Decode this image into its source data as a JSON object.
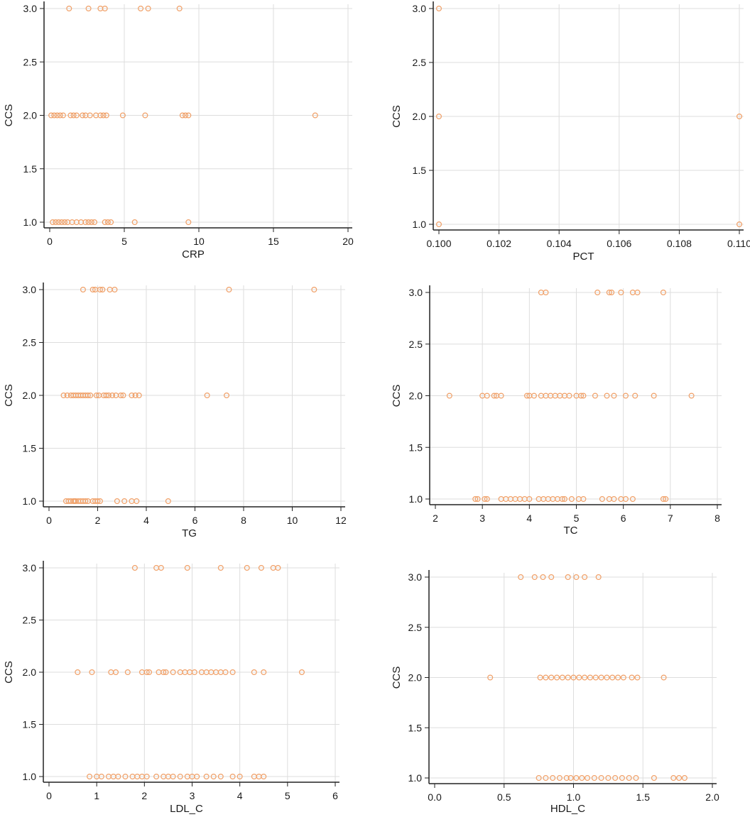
{
  "figure": {
    "marker_color": "#f0a068",
    "grid_color": "#dddddd",
    "axis_color": "#222222"
  },
  "chart_data": [
    {
      "type": "scatter",
      "xlabel": "CRP",
      "ylabel": "CCS",
      "xlim": [
        0,
        20
      ],
      "ylim": [
        1.0,
        3.0
      ],
      "xticks": [
        0,
        5,
        10,
        15,
        20
      ],
      "xtick_labels": [
        "0",
        "5",
        "10",
        "15",
        "20"
      ],
      "yticks": [
        1.0,
        1.5,
        2.0,
        2.5,
        3.0
      ],
      "ytick_labels": [
        "1.0",
        "1.5",
        "2.0",
        "2.5",
        "3.0"
      ],
      "grid": true,
      "points": [
        [
          0.2,
          1
        ],
        [
          0.4,
          1
        ],
        [
          0.6,
          1
        ],
        [
          0.8,
          1
        ],
        [
          1.0,
          1
        ],
        [
          1.2,
          1
        ],
        [
          1.5,
          1
        ],
        [
          1.8,
          1
        ],
        [
          2.1,
          1
        ],
        [
          2.4,
          1
        ],
        [
          2.6,
          1
        ],
        [
          2.8,
          1
        ],
        [
          3.0,
          1
        ],
        [
          3.7,
          1
        ],
        [
          3.9,
          1
        ],
        [
          4.1,
          1
        ],
        [
          5.7,
          1
        ],
        [
          9.3,
          1
        ],
        [
          0.1,
          2
        ],
        [
          0.3,
          2
        ],
        [
          0.5,
          2
        ],
        [
          0.7,
          2
        ],
        [
          0.9,
          2
        ],
        [
          1.4,
          2
        ],
        [
          1.6,
          2
        ],
        [
          1.8,
          2
        ],
        [
          2.2,
          2
        ],
        [
          2.4,
          2
        ],
        [
          2.7,
          2
        ],
        [
          3.1,
          2
        ],
        [
          3.4,
          2
        ],
        [
          3.6,
          2
        ],
        [
          3.8,
          2
        ],
        [
          4.9,
          2
        ],
        [
          6.4,
          2
        ],
        [
          8.9,
          2
        ],
        [
          9.1,
          2
        ],
        [
          9.3,
          2
        ],
        [
          17.8,
          2
        ],
        [
          1.3,
          3
        ],
        [
          2.6,
          3
        ],
        [
          3.4,
          3
        ],
        [
          3.7,
          3
        ],
        [
          6.1,
          3
        ],
        [
          6.6,
          3
        ],
        [
          8.7,
          3
        ]
      ]
    },
    {
      "type": "scatter",
      "xlabel": "PCT",
      "ylabel": "CCS",
      "xlim": [
        0.1,
        0.11
      ],
      "ylim": [
        1.0,
        3.0
      ],
      "xticks": [
        0.1,
        0.102,
        0.104,
        0.106,
        0.108,
        0.11
      ],
      "xtick_labels": [
        "0.100",
        "0.102",
        "0.104",
        "0.106",
        "0.108",
        "0.110"
      ],
      "yticks": [
        1.0,
        1.5,
        2.0,
        2.5,
        3.0
      ],
      "ytick_labels": [
        "1.0",
        "1.5",
        "2.0",
        "2.5",
        "3.0"
      ],
      "grid": true,
      "points": [
        [
          0.1,
          1
        ],
        [
          0.11,
          1
        ],
        [
          0.1,
          2
        ],
        [
          0.11,
          2
        ],
        [
          0.1,
          3
        ]
      ]
    },
    {
      "type": "scatter",
      "xlabel": "TG",
      "ylabel": "CCS",
      "xlim": [
        0,
        12
      ],
      "ylim": [
        1.0,
        3.0
      ],
      "xticks": [
        0,
        2,
        4,
        6,
        8,
        10,
        12
      ],
      "xtick_labels": [
        "0",
        "2",
        "4",
        "6",
        "8",
        "10",
        "12"
      ],
      "yticks": [
        1.0,
        1.5,
        2.0,
        2.5,
        3.0
      ],
      "ytick_labels": [
        "1.0",
        "1.5",
        "2.0",
        "2.5",
        "3.0"
      ],
      "grid": true,
      "points": [
        [
          0.7,
          1
        ],
        [
          0.8,
          1
        ],
        [
          0.9,
          1
        ],
        [
          1.0,
          1
        ],
        [
          1.05,
          1
        ],
        [
          1.1,
          1
        ],
        [
          1.2,
          1
        ],
        [
          1.3,
          1
        ],
        [
          1.4,
          1
        ],
        [
          1.5,
          1
        ],
        [
          1.6,
          1
        ],
        [
          1.8,
          1
        ],
        [
          1.9,
          1
        ],
        [
          2.0,
          1
        ],
        [
          2.1,
          1
        ],
        [
          2.8,
          1
        ],
        [
          3.1,
          1
        ],
        [
          3.4,
          1
        ],
        [
          3.6,
          1
        ],
        [
          4.9,
          1
        ],
        [
          0.6,
          2
        ],
        [
          0.75,
          2
        ],
        [
          0.9,
          2
        ],
        [
          1.0,
          2
        ],
        [
          1.1,
          2
        ],
        [
          1.2,
          2
        ],
        [
          1.3,
          2
        ],
        [
          1.4,
          2
        ],
        [
          1.5,
          2
        ],
        [
          1.6,
          2
        ],
        [
          1.7,
          2
        ],
        [
          1.95,
          2
        ],
        [
          2.05,
          2
        ],
        [
          2.25,
          2
        ],
        [
          2.35,
          2
        ],
        [
          2.45,
          2
        ],
        [
          2.6,
          2
        ],
        [
          2.75,
          2
        ],
        [
          2.95,
          2
        ],
        [
          3.05,
          2
        ],
        [
          3.4,
          2
        ],
        [
          3.55,
          2
        ],
        [
          3.7,
          2
        ],
        [
          6.5,
          2
        ],
        [
          7.3,
          2
        ],
        [
          1.4,
          3
        ],
        [
          1.8,
          3
        ],
        [
          1.9,
          3
        ],
        [
          2.1,
          3
        ],
        [
          2.2,
          3
        ],
        [
          2.5,
          3
        ],
        [
          2.7,
          3
        ],
        [
          7.4,
          3
        ],
        [
          10.9,
          3
        ]
      ]
    },
    {
      "type": "scatter",
      "xlabel": "TC",
      "ylabel": "CCS",
      "xlim": [
        2,
        8
      ],
      "ylim": [
        1.0,
        3.0
      ],
      "xticks": [
        2,
        3,
        4,
        5,
        6,
        7,
        8
      ],
      "xtick_labels": [
        "2",
        "3",
        "4",
        "5",
        "6",
        "7",
        "8"
      ],
      "yticks": [
        1.0,
        1.5,
        2.0,
        2.5,
        3.0
      ],
      "ytick_labels": [
        "1.0",
        "1.5",
        "2.0",
        "2.5",
        "3.0"
      ],
      "grid": true,
      "points": [
        [
          2.85,
          1
        ],
        [
          2.9,
          1
        ],
        [
          3.05,
          1
        ],
        [
          3.1,
          1
        ],
        [
          3.4,
          1
        ],
        [
          3.5,
          1
        ],
        [
          3.6,
          1
        ],
        [
          3.7,
          1
        ],
        [
          3.8,
          1
        ],
        [
          3.9,
          1
        ],
        [
          4.0,
          1
        ],
        [
          4.2,
          1
        ],
        [
          4.3,
          1
        ],
        [
          4.4,
          1
        ],
        [
          4.5,
          1
        ],
        [
          4.6,
          1
        ],
        [
          4.7,
          1
        ],
        [
          4.75,
          1
        ],
        [
          4.9,
          1
        ],
        [
          5.05,
          1
        ],
        [
          5.15,
          1
        ],
        [
          5.55,
          1
        ],
        [
          5.7,
          1
        ],
        [
          5.8,
          1
        ],
        [
          5.95,
          1
        ],
        [
          6.05,
          1
        ],
        [
          6.2,
          1
        ],
        [
          6.85,
          1
        ],
        [
          6.9,
          1
        ],
        [
          2.3,
          2
        ],
        [
          3.0,
          2
        ],
        [
          3.1,
          2
        ],
        [
          3.25,
          2
        ],
        [
          3.3,
          2
        ],
        [
          3.4,
          2
        ],
        [
          3.95,
          2
        ],
        [
          4.0,
          2
        ],
        [
          4.1,
          2
        ],
        [
          4.25,
          2
        ],
        [
          4.35,
          2
        ],
        [
          4.45,
          2
        ],
        [
          4.55,
          2
        ],
        [
          4.65,
          2
        ],
        [
          4.75,
          2
        ],
        [
          4.85,
          2
        ],
        [
          5.0,
          2
        ],
        [
          5.1,
          2
        ],
        [
          5.15,
          2
        ],
        [
          5.4,
          2
        ],
        [
          5.65,
          2
        ],
        [
          5.8,
          2
        ],
        [
          6.05,
          2
        ],
        [
          6.25,
          2
        ],
        [
          6.65,
          2
        ],
        [
          7.45,
          2
        ],
        [
          4.25,
          3
        ],
        [
          4.35,
          3
        ],
        [
          5.45,
          3
        ],
        [
          5.7,
          3
        ],
        [
          5.75,
          3
        ],
        [
          5.95,
          3
        ],
        [
          6.2,
          3
        ],
        [
          6.3,
          3
        ],
        [
          6.85,
          3
        ]
      ]
    },
    {
      "type": "scatter",
      "xlabel": "LDL_C",
      "ylabel": "CCS",
      "xlim": [
        0,
        6
      ],
      "ylim": [
        1.0,
        3.0
      ],
      "xticks": [
        0,
        1,
        2,
        3,
        4,
        5,
        6
      ],
      "xtick_labels": [
        "0",
        "1",
        "2",
        "3",
        "4",
        "5",
        "6"
      ],
      "yticks": [
        1.0,
        1.5,
        2.0,
        2.5,
        3.0
      ],
      "ytick_labels": [
        "1.0",
        "1.5",
        "2.0",
        "2.5",
        "3.0"
      ],
      "grid": true,
      "points": [
        [
          0.85,
          1
        ],
        [
          1.0,
          1
        ],
        [
          1.1,
          1
        ],
        [
          1.25,
          1
        ],
        [
          1.35,
          1
        ],
        [
          1.45,
          1
        ],
        [
          1.6,
          1
        ],
        [
          1.75,
          1
        ],
        [
          1.85,
          1
        ],
        [
          1.95,
          1
        ],
        [
          2.05,
          1
        ],
        [
          2.25,
          1
        ],
        [
          2.4,
          1
        ],
        [
          2.5,
          1
        ],
        [
          2.6,
          1
        ],
        [
          2.75,
          1
        ],
        [
          2.9,
          1
        ],
        [
          3.0,
          1
        ],
        [
          3.1,
          1
        ],
        [
          3.3,
          1
        ],
        [
          3.45,
          1
        ],
        [
          3.6,
          1
        ],
        [
          3.85,
          1
        ],
        [
          4.0,
          1
        ],
        [
          4.3,
          1
        ],
        [
          4.4,
          1
        ],
        [
          4.5,
          1
        ],
        [
          0.6,
          2
        ],
        [
          0.9,
          2
        ],
        [
          1.3,
          2
        ],
        [
          1.4,
          2
        ],
        [
          1.65,
          2
        ],
        [
          1.95,
          2
        ],
        [
          2.05,
          2
        ],
        [
          2.1,
          2
        ],
        [
          2.3,
          2
        ],
        [
          2.4,
          2
        ],
        [
          2.45,
          2
        ],
        [
          2.6,
          2
        ],
        [
          2.75,
          2
        ],
        [
          2.85,
          2
        ],
        [
          2.95,
          2
        ],
        [
          3.05,
          2
        ],
        [
          3.2,
          2
        ],
        [
          3.3,
          2
        ],
        [
          3.4,
          2
        ],
        [
          3.5,
          2
        ],
        [
          3.6,
          2
        ],
        [
          3.7,
          2
        ],
        [
          3.85,
          2
        ],
        [
          4.3,
          2
        ],
        [
          4.5,
          2
        ],
        [
          5.3,
          2
        ],
        [
          1.8,
          3
        ],
        [
          2.25,
          3
        ],
        [
          2.35,
          3
        ],
        [
          2.9,
          3
        ],
        [
          3.6,
          3
        ],
        [
          4.15,
          3
        ],
        [
          4.45,
          3
        ],
        [
          4.7,
          3
        ],
        [
          4.8,
          3
        ]
      ]
    },
    {
      "type": "scatter",
      "xlabel": "HDL_C",
      "ylabel": "CCS",
      "xlim": [
        0,
        2
      ],
      "ylim": [
        1.0,
        3.0
      ],
      "xticks": [
        0,
        0.5,
        1.0,
        1.5,
        2.0
      ],
      "xtick_labels": [
        "0.0",
        "0.5",
        "1.0",
        "1.5",
        "2.0"
      ],
      "yticks": [
        1.0,
        1.5,
        2.0,
        2.5,
        3.0
      ],
      "ytick_labels": [
        "1.0",
        "1.5",
        "2.0",
        "2.5",
        "3.0"
      ],
      "grid": true,
      "points": [
        [
          0.75,
          1
        ],
        [
          0.8,
          1
        ],
        [
          0.85,
          1
        ],
        [
          0.9,
          1
        ],
        [
          0.95,
          1
        ],
        [
          0.98,
          1
        ],
        [
          1.02,
          1
        ],
        [
          1.06,
          1
        ],
        [
          1.1,
          1
        ],
        [
          1.15,
          1
        ],
        [
          1.2,
          1
        ],
        [
          1.25,
          1
        ],
        [
          1.3,
          1
        ],
        [
          1.35,
          1
        ],
        [
          1.4,
          1
        ],
        [
          1.45,
          1
        ],
        [
          1.58,
          1
        ],
        [
          1.72,
          1
        ],
        [
          1.76,
          1
        ],
        [
          1.8,
          1
        ],
        [
          0.4,
          2
        ],
        [
          0.76,
          2
        ],
        [
          0.8,
          2
        ],
        [
          0.84,
          2
        ],
        [
          0.88,
          2
        ],
        [
          0.92,
          2
        ],
        [
          0.96,
          2
        ],
        [
          1.0,
          2
        ],
        [
          1.04,
          2
        ],
        [
          1.08,
          2
        ],
        [
          1.12,
          2
        ],
        [
          1.16,
          2
        ],
        [
          1.2,
          2
        ],
        [
          1.24,
          2
        ],
        [
          1.28,
          2
        ],
        [
          1.32,
          2
        ],
        [
          1.36,
          2
        ],
        [
          1.42,
          2
        ],
        [
          1.46,
          2
        ],
        [
          1.65,
          2
        ],
        [
          0.62,
          3
        ],
        [
          0.72,
          3
        ],
        [
          0.78,
          3
        ],
        [
          0.84,
          3
        ],
        [
          0.96,
          3
        ],
        [
          1.02,
          3
        ],
        [
          1.08,
          3
        ],
        [
          1.18,
          3
        ]
      ]
    }
  ]
}
